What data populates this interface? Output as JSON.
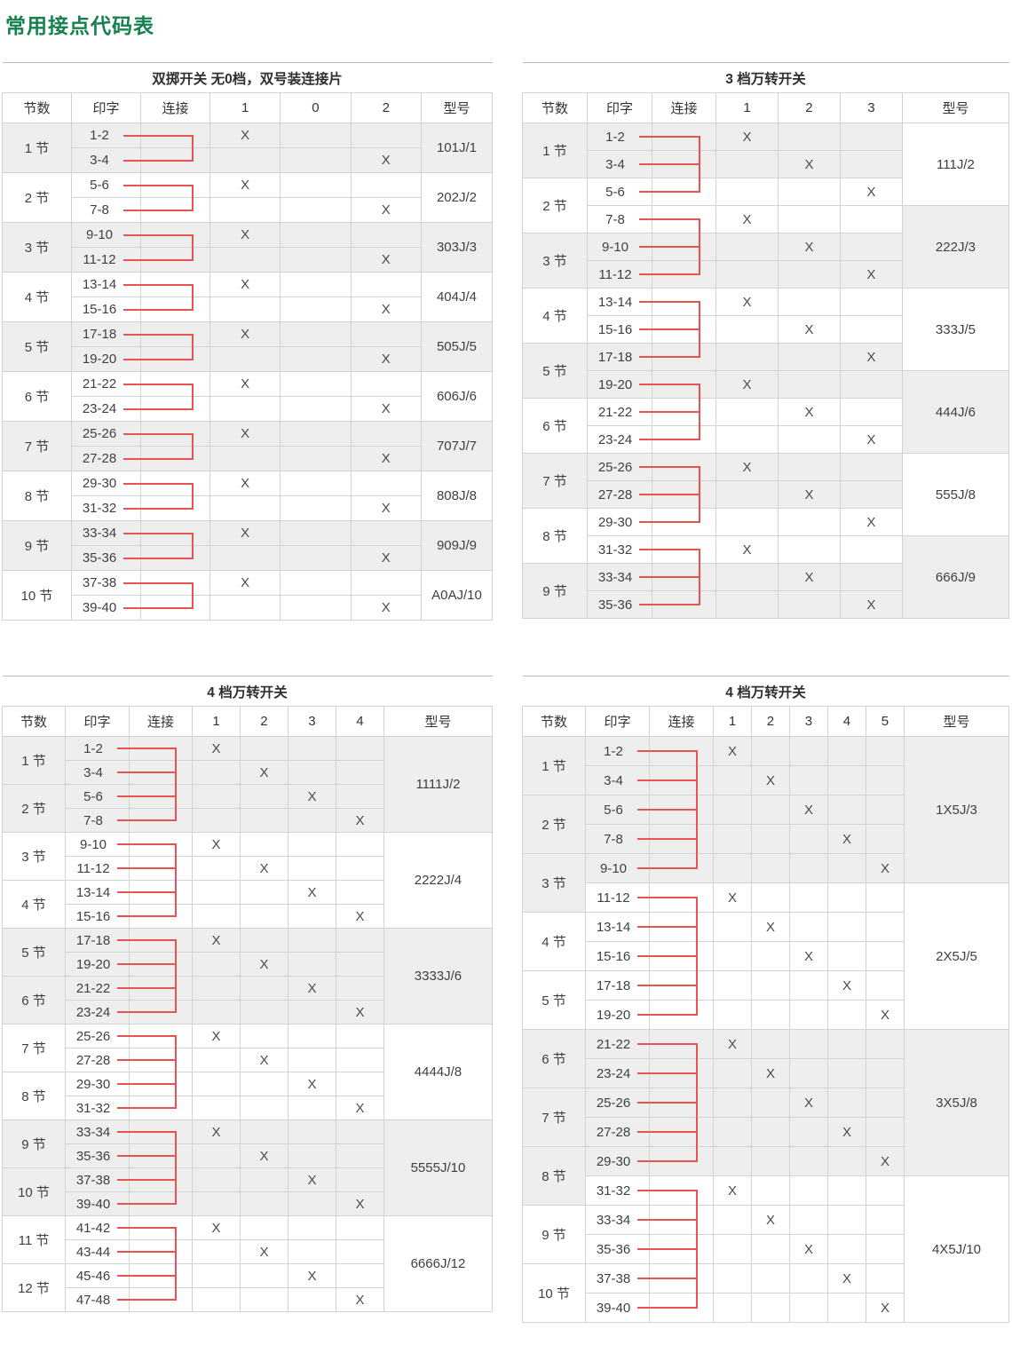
{
  "page_title": "常用接点代码表",
  "mark": "X",
  "colors": {
    "title_green": "#15814e",
    "connector_red": "#e9524e",
    "shaded_row": "#eeeeee",
    "border": "#d2d2d2",
    "text": "#404040"
  },
  "tables": [
    {
      "id": "t1",
      "title": "双掷开关 无0档，双号装连接片",
      "col_headers": {
        "jie": "节数",
        "print": "印字",
        "conn": "连接",
        "model": "型号"
      },
      "positions": [
        "1",
        "0",
        "2"
      ],
      "rows": [
        {
          "print": "1-2",
          "x": 0,
          "shaded": true
        },
        {
          "print": "3-4",
          "x": 2,
          "shaded": true
        },
        {
          "print": "5-6",
          "x": 0,
          "shaded": false
        },
        {
          "print": "7-8",
          "x": 2,
          "shaded": false
        },
        {
          "print": "9-10",
          "x": 0,
          "shaded": true
        },
        {
          "print": "11-12",
          "x": 2,
          "shaded": true
        },
        {
          "print": "13-14",
          "x": 0,
          "shaded": false
        },
        {
          "print": "15-16",
          "x": 2,
          "shaded": false
        },
        {
          "print": "17-18",
          "x": 0,
          "shaded": true
        },
        {
          "print": "19-20",
          "x": 2,
          "shaded": true
        },
        {
          "print": "21-22",
          "x": 0,
          "shaded": false
        },
        {
          "print": "23-24",
          "x": 2,
          "shaded": false
        },
        {
          "print": "25-26",
          "x": 0,
          "shaded": true
        },
        {
          "print": "27-28",
          "x": 2,
          "shaded": true
        },
        {
          "print": "29-30",
          "x": 0,
          "shaded": false
        },
        {
          "print": "31-32",
          "x": 2,
          "shaded": false
        },
        {
          "print": "33-34",
          "x": 0,
          "shaded": true
        },
        {
          "print": "35-36",
          "x": 2,
          "shaded": true
        },
        {
          "print": "37-38",
          "x": 0,
          "shaded": false
        },
        {
          "print": "39-40",
          "x": 2,
          "shaded": false
        }
      ],
      "jie_groups": [
        {
          "label": "1 节",
          "span": 2,
          "shaded": true
        },
        {
          "label": "2 节",
          "span": 2,
          "shaded": false
        },
        {
          "label": "3 节",
          "span": 2,
          "shaded": true
        },
        {
          "label": "4 节",
          "span": 2,
          "shaded": false
        },
        {
          "label": "5 节",
          "span": 2,
          "shaded": true
        },
        {
          "label": "6 节",
          "span": 2,
          "shaded": false
        },
        {
          "label": "7 节",
          "span": 2,
          "shaded": true
        },
        {
          "label": "8 节",
          "span": 2,
          "shaded": false
        },
        {
          "label": "9 节",
          "span": 2,
          "shaded": true
        },
        {
          "label": "10 节",
          "span": 2,
          "shaded": false
        }
      ],
      "model_groups": [
        {
          "label": "101J/1",
          "span": 2,
          "shaded": true
        },
        {
          "label": "202J/2",
          "span": 2,
          "shaded": false
        },
        {
          "label": "303J/3",
          "span": 2,
          "shaded": true
        },
        {
          "label": "404J/4",
          "span": 2,
          "shaded": false
        },
        {
          "label": "505J/5",
          "span": 2,
          "shaded": true
        },
        {
          "label": "606J/6",
          "span": 2,
          "shaded": false
        },
        {
          "label": "707J/7",
          "span": 2,
          "shaded": true
        },
        {
          "label": "808J/8",
          "span": 2,
          "shaded": false
        },
        {
          "label": "909J/9",
          "span": 2,
          "shaded": true
        },
        {
          "label": "A0AJ/10",
          "span": 2,
          "shaded": false
        }
      ]
    },
    {
      "id": "t2",
      "title": "3 档万转开关",
      "col_headers": {
        "jie": "节数",
        "print": "印字",
        "conn": "连接",
        "model": "型号"
      },
      "positions": [
        "1",
        "2",
        "3"
      ],
      "rows": [
        {
          "print": "1-2",
          "x": 0,
          "shaded": true
        },
        {
          "print": "3-4",
          "x": 1,
          "shaded": true
        },
        {
          "print": "5-6",
          "x": 2,
          "shaded": false
        },
        {
          "print": "7-8",
          "x": 0,
          "shaded": false
        },
        {
          "print": "9-10",
          "x": 1,
          "shaded": true
        },
        {
          "print": "11-12",
          "x": 2,
          "shaded": true
        },
        {
          "print": "13-14",
          "x": 0,
          "shaded": false
        },
        {
          "print": "15-16",
          "x": 1,
          "shaded": false
        },
        {
          "print": "17-18",
          "x": 2,
          "shaded": true
        },
        {
          "print": "19-20",
          "x": 0,
          "shaded": true
        },
        {
          "print": "21-22",
          "x": 1,
          "shaded": false
        },
        {
          "print": "23-24",
          "x": 2,
          "shaded": false
        },
        {
          "print": "25-26",
          "x": 0,
          "shaded": true
        },
        {
          "print": "27-28",
          "x": 1,
          "shaded": true
        },
        {
          "print": "29-30",
          "x": 2,
          "shaded": false
        },
        {
          "print": "31-32",
          "x": 0,
          "shaded": false
        },
        {
          "print": "33-34",
          "x": 1,
          "shaded": true
        },
        {
          "print": "35-36",
          "x": 2,
          "shaded": true
        }
      ],
      "jie_groups": [
        {
          "label": "1 节",
          "span": 2,
          "shaded": true
        },
        {
          "label": "2 节",
          "span": 2,
          "shaded": false
        },
        {
          "label": "3 节",
          "span": 2,
          "shaded": true
        },
        {
          "label": "4 节",
          "span": 2,
          "shaded": false
        },
        {
          "label": "5 节",
          "span": 2,
          "shaded": true
        },
        {
          "label": "6 节",
          "span": 2,
          "shaded": false
        },
        {
          "label": "7 节",
          "span": 2,
          "shaded": true
        },
        {
          "label": "8 节",
          "span": 2,
          "shaded": false
        },
        {
          "label": "9 节",
          "span": 2,
          "shaded": true
        }
      ],
      "model_groups": [
        {
          "label": "111J/2",
          "span": 3,
          "shaded": false
        },
        {
          "label": "222J/3",
          "span": 3,
          "shaded": true
        },
        {
          "label": "333J/5",
          "span": 3,
          "shaded": false
        },
        {
          "label": "444J/6",
          "span": 3,
          "shaded": true
        },
        {
          "label": "555J/8",
          "span": 3,
          "shaded": false
        },
        {
          "label": "666J/9",
          "span": 3,
          "shaded": true
        }
      ]
    },
    {
      "id": "t3",
      "title": "4 档万转开关",
      "col_headers": {
        "jie": "节数",
        "print": "印字",
        "conn": "连接",
        "model": "型号"
      },
      "positions": [
        "1",
        "2",
        "3",
        "4"
      ],
      "rows": [
        {
          "print": "1-2",
          "x": 0,
          "shaded": true
        },
        {
          "print": "3-4",
          "x": 1,
          "shaded": true
        },
        {
          "print": "5-6",
          "x": 2,
          "shaded": true
        },
        {
          "print": "7-8",
          "x": 3,
          "shaded": true
        },
        {
          "print": "9-10",
          "x": 0,
          "shaded": false
        },
        {
          "print": "11-12",
          "x": 1,
          "shaded": false
        },
        {
          "print": "13-14",
          "x": 2,
          "shaded": false
        },
        {
          "print": "15-16",
          "x": 3,
          "shaded": false
        },
        {
          "print": "17-18",
          "x": 0,
          "shaded": true
        },
        {
          "print": "19-20",
          "x": 1,
          "shaded": true
        },
        {
          "print": "21-22",
          "x": 2,
          "shaded": true
        },
        {
          "print": "23-24",
          "x": 3,
          "shaded": true
        },
        {
          "print": "25-26",
          "x": 0,
          "shaded": false
        },
        {
          "print": "27-28",
          "x": 1,
          "shaded": false
        },
        {
          "print": "29-30",
          "x": 2,
          "shaded": false
        },
        {
          "print": "31-32",
          "x": 3,
          "shaded": false
        },
        {
          "print": "33-34",
          "x": 0,
          "shaded": true
        },
        {
          "print": "35-36",
          "x": 1,
          "shaded": true
        },
        {
          "print": "37-38",
          "x": 2,
          "shaded": true
        },
        {
          "print": "39-40",
          "x": 3,
          "shaded": true
        },
        {
          "print": "41-42",
          "x": 0,
          "shaded": false
        },
        {
          "print": "43-44",
          "x": 1,
          "shaded": false
        },
        {
          "print": "45-46",
          "x": 2,
          "shaded": false
        },
        {
          "print": "47-48",
          "x": 3,
          "shaded": false
        }
      ],
      "jie_groups": [
        {
          "label": "1 节",
          "span": 2,
          "shaded": true
        },
        {
          "label": "2 节",
          "span": 2,
          "shaded": true
        },
        {
          "label": "3 节",
          "span": 2,
          "shaded": false
        },
        {
          "label": "4 节",
          "span": 2,
          "shaded": false
        },
        {
          "label": "5 节",
          "span": 2,
          "shaded": true
        },
        {
          "label": "6 节",
          "span": 2,
          "shaded": true
        },
        {
          "label": "7 节",
          "span": 2,
          "shaded": false
        },
        {
          "label": "8 节",
          "span": 2,
          "shaded": false
        },
        {
          "label": "9 节",
          "span": 2,
          "shaded": true
        },
        {
          "label": "10 节",
          "span": 2,
          "shaded": true
        },
        {
          "label": "11 节",
          "span": 2,
          "shaded": false
        },
        {
          "label": "12 节",
          "span": 2,
          "shaded": false
        }
      ],
      "model_groups": [
        {
          "label": "1111J/2",
          "span": 4,
          "shaded": true
        },
        {
          "label": "2222J/4",
          "span": 4,
          "shaded": false
        },
        {
          "label": "3333J/6",
          "span": 4,
          "shaded": true
        },
        {
          "label": "4444J/8",
          "span": 4,
          "shaded": false
        },
        {
          "label": "5555J/10",
          "span": 4,
          "shaded": true
        },
        {
          "label": "6666J/12",
          "span": 4,
          "shaded": false
        }
      ]
    },
    {
      "id": "t4",
      "title": "4 档万转开关",
      "col_headers": {
        "jie": "节数",
        "print": "印字",
        "conn": "连接",
        "model": "型号"
      },
      "positions": [
        "1",
        "2",
        "3",
        "4",
        "5"
      ],
      "rows": [
        {
          "print": "1-2",
          "x": 0,
          "shaded": true
        },
        {
          "print": "3-4",
          "x": 1,
          "shaded": true
        },
        {
          "print": "5-6",
          "x": 2,
          "shaded": true
        },
        {
          "print": "7-8",
          "x": 3,
          "shaded": true
        },
        {
          "print": "9-10",
          "x": 4,
          "shaded": true
        },
        {
          "print": "11-12",
          "x": 0,
          "shaded": false
        },
        {
          "print": "13-14",
          "x": 1,
          "shaded": false
        },
        {
          "print": "15-16",
          "x": 2,
          "shaded": false
        },
        {
          "print": "17-18",
          "x": 3,
          "shaded": false
        },
        {
          "print": "19-20",
          "x": 4,
          "shaded": false
        },
        {
          "print": "21-22",
          "x": 0,
          "shaded": true
        },
        {
          "print": "23-24",
          "x": 1,
          "shaded": true
        },
        {
          "print": "25-26",
          "x": 2,
          "shaded": true
        },
        {
          "print": "27-28",
          "x": 3,
          "shaded": true
        },
        {
          "print": "29-30",
          "x": 4,
          "shaded": true
        },
        {
          "print": "31-32",
          "x": 0,
          "shaded": false
        },
        {
          "print": "33-34",
          "x": 1,
          "shaded": false
        },
        {
          "print": "35-36",
          "x": 2,
          "shaded": false
        },
        {
          "print": "37-38",
          "x": 3,
          "shaded": false
        },
        {
          "print": "39-40",
          "x": 4,
          "shaded": false
        }
      ],
      "jie_groups": [
        {
          "label": "1 节",
          "span": 2,
          "shaded": true
        },
        {
          "label": "2 节",
          "span": 2,
          "shaded": true
        },
        {
          "label": "3 节",
          "span": 2,
          "shaded": true
        },
        {
          "label": "4 节",
          "span": 2,
          "shaded": false
        },
        {
          "label": "5 节",
          "span": 2,
          "shaded": false
        },
        {
          "label": "6 节",
          "span": 2,
          "shaded": true
        },
        {
          "label": "7 节",
          "span": 2,
          "shaded": true
        },
        {
          "label": "8 节",
          "span": 2,
          "shaded": true
        },
        {
          "label": "9 节",
          "span": 2,
          "shaded": false
        },
        {
          "label": "10 节",
          "span": 2,
          "shaded": false
        }
      ],
      "model_groups": [
        {
          "label": "1X5J/3",
          "span": 5,
          "shaded": true
        },
        {
          "label": "2X5J/5",
          "span": 5,
          "shaded": false
        },
        {
          "label": "3X5J/8",
          "span": 5,
          "shaded": true
        },
        {
          "label": "4X5J/10",
          "span": 5,
          "shaded": false
        }
      ]
    }
  ]
}
